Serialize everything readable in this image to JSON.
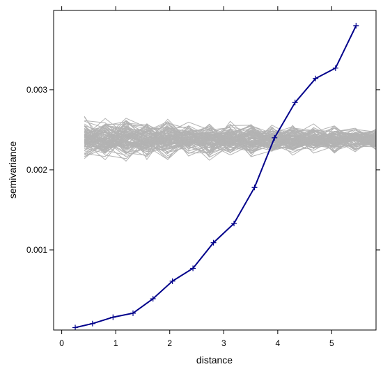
{
  "chart_data": {
    "type": "line",
    "title": "",
    "xlabel": "distance",
    "ylabel": "semivariance",
    "xlim": [
      -0.15,
      5.82
    ],
    "ylim": [
      0.0,
      0.00399
    ],
    "x_ticks": [
      0,
      1,
      2,
      3,
      4,
      5
    ],
    "x_tick_labels": [
      "0",
      "1",
      "2",
      "3",
      "4",
      "5"
    ],
    "y_ticks": [
      0.001,
      0.002,
      0.003
    ],
    "y_tick_labels": [
      "0.001",
      "0.002",
      "0.003"
    ],
    "grid": false,
    "series": [
      {
        "role": "observed",
        "color": "#00008b",
        "marker": "plus",
        "x": [
          0.25,
          0.57,
          0.95,
          1.32,
          1.69,
          2.05,
          2.43,
          2.81,
          3.19,
          3.57,
          3.94,
          4.32,
          4.7,
          5.07,
          5.45
        ],
        "y": [
          3e-05,
          8e-05,
          0.00016,
          0.00021,
          0.00039,
          0.00061,
          0.00077,
          0.00109,
          0.00133,
          0.00178,
          0.0024,
          0.00284,
          0.00314,
          0.00327,
          0.0038
        ]
      }
    ],
    "envelope": {
      "role": "simulated",
      "color": "#b3b3b3",
      "count": 99,
      "center": 0.00238,
      "spread_start": 0.00023,
      "spread_end": 0.00012,
      "x_start": 0.42,
      "x_end": 5.82
    }
  }
}
